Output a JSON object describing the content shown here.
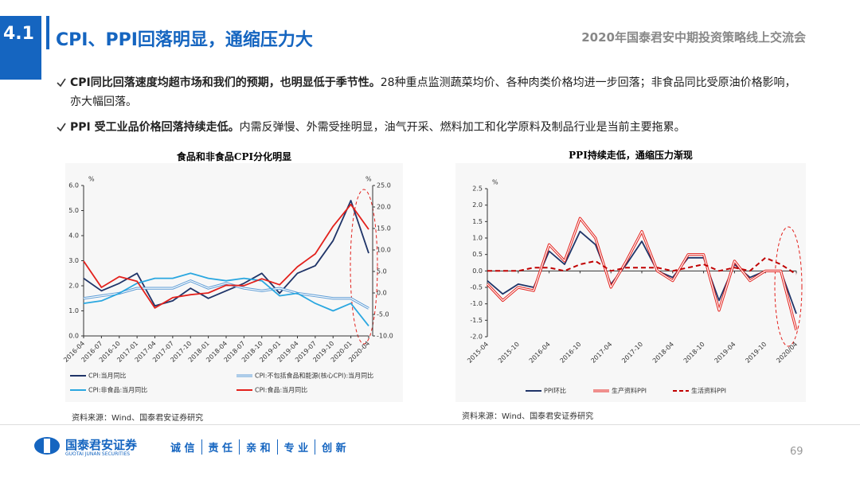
{
  "header": {
    "section": "4.1",
    "title": "CPI、PPI回落明显，通缩压力大",
    "event": "2020年国泰君安中期投资策略线上交流会"
  },
  "bullets": [
    {
      "bold": "CPI同比回落速度均超市场和我们的预期，也明显低于季节性。",
      "text": "28种重点监测蔬菜均价、各种肉类价格均进一步回落；非食品同比受原油价格影响，亦大幅回落。"
    },
    {
      "bold": "PPI 受工业品价格回落持续走低。",
      "text": "内需反弹慢、外需受挫明显，油气开采、燃料加工和化学原料及制品行业是当前主要拖累。"
    }
  ],
  "footer": {
    "logo": "国泰君安证券",
    "logo_en": "GUOTAI JUNAN SECURITIES",
    "values": [
      "诚 信",
      "责 任",
      "亲 和",
      "专 业",
      "创 新"
    ],
    "page": 69
  },
  "chart_data": [
    {
      "type": "line",
      "title": "食品和非食品CPI分化明显",
      "source": "资料来源：Wind、国泰君安证券研究",
      "categories": [
        "2016-04",
        "2016-07",
        "2016-10",
        "2017-01",
        "2017-04",
        "2017-07",
        "2017-10",
        "2018-01",
        "2018-04",
        "2018-07",
        "2018-10",
        "2019-01",
        "2019-04",
        "2019-07",
        "2019-10",
        "2020-01",
        "2020-04"
      ],
      "y_unit": "%",
      "y2_unit": "%",
      "ylim": [
        0,
        6
      ],
      "yticks": [
        {
          "value": 0,
          "label": "0.0"
        },
        {
          "value": 1,
          "label": "1.0"
        },
        {
          "value": 2,
          "label": "2.0"
        },
        {
          "value": 3,
          "label": "3.0"
        },
        {
          "value": 4,
          "label": "4.0"
        },
        {
          "value": 5,
          "label": "5.0"
        },
        {
          "value": 6,
          "label": "6.0"
        }
      ],
      "y2lim": [
        -10,
        25
      ],
      "y2ticks": [
        {
          "value": -10,
          "label": "-10.0"
        },
        {
          "value": -5,
          "label": "-5.0"
        },
        {
          "value": 0,
          "label": "0.0"
        },
        {
          "value": 5,
          "label": "5.0"
        },
        {
          "value": 10,
          "label": "10.0"
        },
        {
          "value": 15,
          "label": "15.0"
        },
        {
          "value": 20,
          "label": "20.0"
        },
        {
          "value": 25,
          "label": "25.0"
        }
      ],
      "series": [
        {
          "name": "CPI:当月同比",
          "color": "#1f3468",
          "style": "solid",
          "values": [
            2.3,
            1.8,
            2.1,
            2.5,
            1.2,
            1.4,
            1.9,
            1.5,
            1.8,
            2.1,
            2.5,
            1.7,
            2.5,
            2.8,
            3.8,
            5.4,
            3.3
          ]
        },
        {
          "name": "CPI:不包括食品和能源(核心CPI):当月同比",
          "color": "#5b9bd5",
          "style": "double",
          "values": [
            1.5,
            1.6,
            1.7,
            1.9,
            1.9,
            1.9,
            2.2,
            1.9,
            2.1,
            1.9,
            1.8,
            1.9,
            1.7,
            1.6,
            1.5,
            1.5,
            1.1
          ]
        },
        {
          "name": "CPI:非食品:当月同比",
          "color": "#2aa7e0",
          "style": "solid",
          "values": [
            1.3,
            1.4,
            1.7,
            2.1,
            2.3,
            2.3,
            2.5,
            2.3,
            2.2,
            2.3,
            2.2,
            1.6,
            1.7,
            1.3,
            1.0,
            1.3,
            0.4
          ]
        },
        {
          "name": "CPI:食品:当月同比",
          "color": "#e3211c",
          "style": "solid",
          "axis": "y2",
          "values": [
            7.4,
            1.3,
            3.8,
            2.7,
            -3.5,
            -1.1,
            -0.4,
            0.0,
            1.8,
            1.7,
            3.3,
            1.9,
            6.1,
            9.1,
            15.5,
            20.6,
            14.8
          ]
        }
      ]
    },
    {
      "type": "line",
      "title": "PPI持续走低，通缩压力渐现",
      "source": "资料来源：Wind、国泰君安证券研究",
      "categories": [
        "2015-04",
        null,
        "2015-10",
        null,
        "2016-04",
        null,
        "2016-10",
        null,
        "2017-04",
        null,
        "2017-10",
        null,
        "2018-04",
        null,
        "2018-10",
        null,
        "2019-04",
        null,
        "2019-10",
        null,
        "2020/04"
      ],
      "y_unit": "%",
      "ylim": [
        -2,
        2.5
      ],
      "yticks": [
        {
          "value": -2,
          "label": "-2.0"
        },
        -1.5,
        {
          "value": -1,
          "label": "-1.0"
        },
        -0.5,
        {
          "value": 0,
          "label": "0.0"
        },
        0.5,
        {
          "value": 1,
          "label": "1.0"
        },
        1.5,
        {
          "value": 2,
          "label": "2.0"
        },
        2.5
      ],
      "series": [
        {
          "name": "PPI环比",
          "color": "#1f3468",
          "style": "solid",
          "values": [
            -0.3,
            -0.7,
            -0.4,
            -0.5,
            0.6,
            0.2,
            1.2,
            0.8,
            -0.4,
            0.2,
            0.9,
            0.0,
            -0.2,
            0.4,
            0.4,
            -0.9,
            0.2,
            -0.2,
            0.0,
            0.0,
            -1.3
          ]
        },
        {
          "name": "生产资料PPI",
          "color": "#e3211c",
          "style": "double",
          "values": [
            -0.4,
            -0.9,
            -0.5,
            -0.6,
            0.8,
            0.3,
            1.6,
            1.0,
            -0.5,
            0.3,
            1.2,
            0.0,
            -0.3,
            0.5,
            0.5,
            -1.2,
            0.3,
            -0.3,
            0.0,
            0.0,
            -1.8
          ]
        },
        {
          "name": "生活资料PPI",
          "color": "#c00000",
          "style": "dashed",
          "values": [
            0.0,
            0.0,
            0.0,
            0.1,
            0.1,
            0.0,
            0.2,
            0.3,
            0.0,
            0.1,
            0.1,
            0.1,
            0.0,
            0.1,
            0.2,
            0.0,
            0.1,
            0.0,
            0.4,
            0.2,
            -0.1
          ]
        }
      ]
    }
  ]
}
